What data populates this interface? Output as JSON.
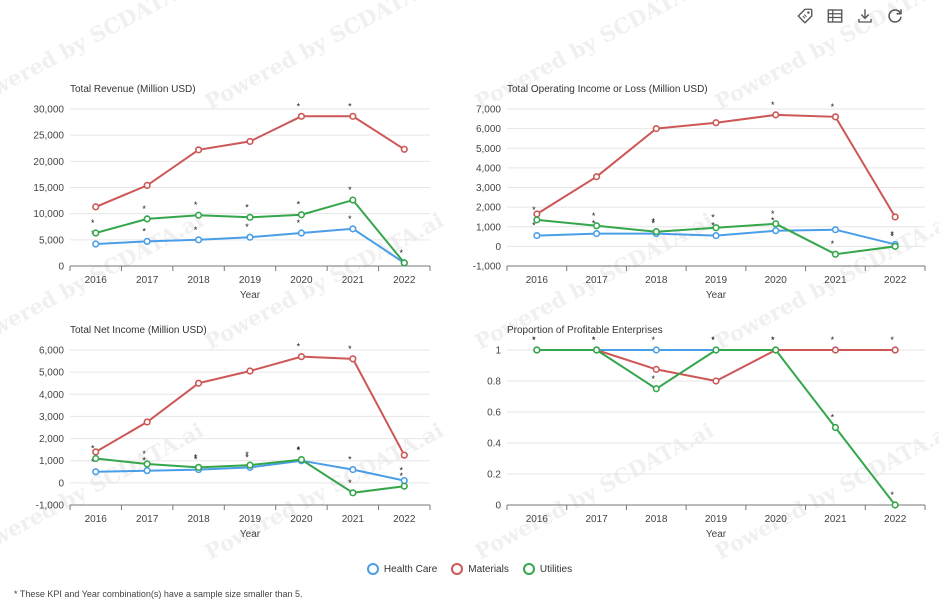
{
  "watermark_text": "Powered by SCDATA.ai",
  "toolbar": {
    "icons": [
      "tag-icon",
      "table-icon",
      "download-icon",
      "refresh-icon"
    ]
  },
  "colors": {
    "Health Care": "#4a9ee8",
    "Materials": "#cd5656",
    "Utilities": "#35a64b",
    "axis": "#666666",
    "grid": "#e6e6e6"
  },
  "legend": {
    "items": [
      {
        "name": "Health Care",
        "color": "#4a9ee8"
      },
      {
        "name": "Materials",
        "color": "#cd5656"
      },
      {
        "name": "Utilities",
        "color": "#35a64b"
      }
    ]
  },
  "footnote": "* These KPI and Year combination(s) have a sample size smaller than 5.",
  "chart_data": [
    {
      "type": "line",
      "title": "Total Revenue (Million USD)",
      "xlabel": "Year",
      "ylabel": "",
      "categories": [
        "2016",
        "2017",
        "2018",
        "2019",
        "2020",
        "2021",
        "2022"
      ],
      "ylim": [
        0,
        30000
      ],
      "yticks": [
        0,
        5000,
        10000,
        15000,
        20000,
        25000,
        30000
      ],
      "ytick_labels": [
        "0",
        "5,000",
        "10,000",
        "15,000",
        "20,000",
        "25,000",
        "30,000"
      ],
      "grid": true,
      "series": [
        {
          "name": "Health Care",
          "values": [
            4200,
            4700,
            5000,
            5500,
            6300,
            7100,
            600
          ],
          "stars": [
            true,
            true,
            true,
            true,
            true,
            true,
            false
          ]
        },
        {
          "name": "Materials",
          "values": [
            11300,
            15400,
            22200,
            23800,
            28600,
            28600,
            22300
          ],
          "stars": [
            false,
            false,
            false,
            false,
            true,
            true,
            false
          ]
        },
        {
          "name": "Utilities",
          "values": [
            6300,
            9000,
            9700,
            9300,
            9800,
            12600,
            600
          ],
          "stars": [
            true,
            true,
            true,
            true,
            true,
            true,
            true
          ]
        }
      ]
    },
    {
      "type": "line",
      "title": "Total Operating Income or Loss (Million USD)",
      "xlabel": "Year",
      "ylabel": "",
      "categories": [
        "2016",
        "2017",
        "2018",
        "2019",
        "2020",
        "2021",
        "2022"
      ],
      "ylim": [
        -1000,
        7000
      ],
      "yticks": [
        -1000,
        0,
        1000,
        2000,
        3000,
        4000,
        5000,
        6000,
        7000
      ],
      "ytick_labels": [
        "-1,000",
        "0",
        "1,000",
        "2,000",
        "3,000",
        "4,000",
        "5,000",
        "6,000",
        "7,000"
      ],
      "grid": true,
      "series": [
        {
          "name": "Health Care",
          "values": [
            550,
            650,
            650,
            550,
            800,
            850,
            100
          ],
          "stars": [
            true,
            true,
            true,
            true,
            true,
            false,
            true
          ]
        },
        {
          "name": "Materials",
          "values": [
            1650,
            3550,
            6000,
            6300,
            6700,
            6600,
            1500
          ],
          "stars": [
            false,
            false,
            false,
            false,
            true,
            true,
            false
          ]
        },
        {
          "name": "Utilities",
          "values": [
            1350,
            1050,
            750,
            950,
            1150,
            -400,
            0
          ],
          "stars": [
            true,
            true,
            true,
            true,
            true,
            true,
            true
          ]
        }
      ]
    },
    {
      "type": "line",
      "title": "Total Net Income (Million USD)",
      "xlabel": "Year",
      "ylabel": "",
      "categories": [
        "2016",
        "2017",
        "2018",
        "2019",
        "2020",
        "2021",
        "2022"
      ],
      "ylim": [
        -1000,
        6000
      ],
      "yticks": [
        -1000,
        0,
        1000,
        2000,
        3000,
        4000,
        5000,
        6000
      ],
      "ytick_labels": [
        "-1,000",
        "0",
        "1,000",
        "2,000",
        "3,000",
        "4,000",
        "5,000",
        "6,000"
      ],
      "grid": true,
      "series": [
        {
          "name": "Health Care",
          "values": [
            500,
            550,
            600,
            700,
            1000,
            600,
            100
          ],
          "stars": [
            true,
            true,
            true,
            true,
            true,
            true,
            true
          ]
        },
        {
          "name": "Materials",
          "values": [
            1400,
            2750,
            4500,
            5050,
            5700,
            5600,
            1250
          ],
          "stars": [
            false,
            false,
            false,
            false,
            true,
            true,
            false
          ]
        },
        {
          "name": "Utilities",
          "values": [
            1100,
            850,
            700,
            800,
            1050,
            -450,
            -150
          ],
          "stars": [
            true,
            true,
            true,
            true,
            true,
            true,
            true
          ]
        }
      ]
    },
    {
      "type": "line",
      "title": "Proportion of Profitable Enterprises",
      "xlabel": "Year",
      "ylabel": "",
      "categories": [
        "2016",
        "2017",
        "2018",
        "2019",
        "2020",
        "2021",
        "2022"
      ],
      "ylim": [
        0,
        1
      ],
      "yticks": [
        0,
        0.2,
        0.4,
        0.6,
        0.8,
        1
      ],
      "ytick_labels": [
        "0",
        "0.2",
        "0.4",
        "0.6",
        "0.8",
        "1"
      ],
      "grid": true,
      "series": [
        {
          "name": "Health Care",
          "values": [
            1,
            1,
            1,
            1,
            1,
            1,
            1
          ],
          "stars": [
            true,
            true,
            true,
            true,
            true,
            true,
            true
          ]
        },
        {
          "name": "Materials",
          "values": [
            1,
            1,
            0.875,
            0.8,
            1,
            1,
            1
          ],
          "stars": [
            false,
            false,
            false,
            false,
            false,
            false,
            false
          ]
        },
        {
          "name": "Utilities",
          "values": [
            1,
            1,
            0.75,
            1,
            1,
            0.5,
            0
          ],
          "stars": [
            true,
            true,
            true,
            true,
            true,
            true,
            true
          ]
        }
      ]
    }
  ]
}
